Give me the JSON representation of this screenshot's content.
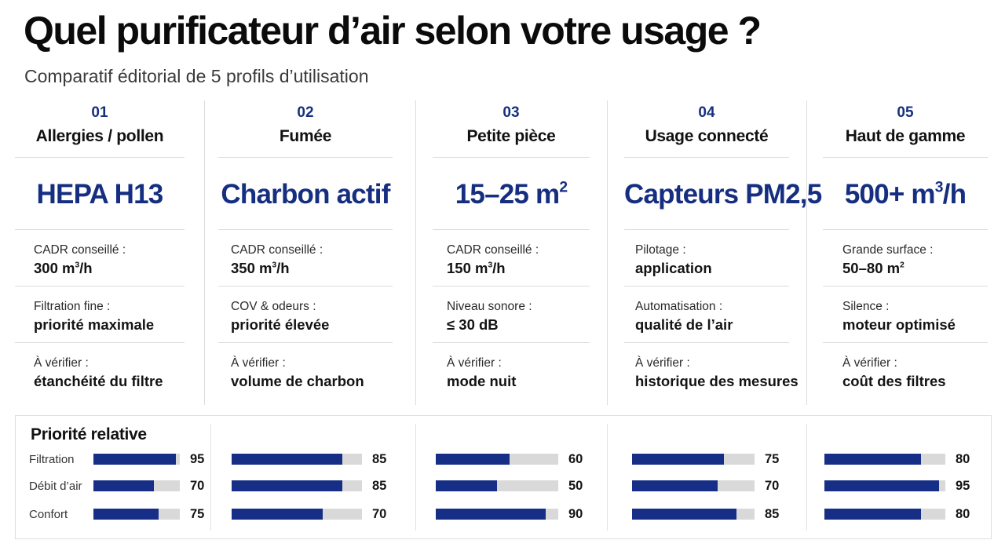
{
  "header": {
    "title": "Quel purificateur d’air selon votre usage ?",
    "subtitle": "Comparatif éditorial de 5 profils d’utilisation"
  },
  "profiles": [
    {
      "number": "01",
      "name": "Allergies / pollen",
      "highlight": "HEPA H13",
      "rows": [
        {
          "label": "CADR conseillé :",
          "value": "300 m³/h"
        },
        {
          "label": "Filtration fine :",
          "value": "priorité maximale"
        },
        {
          "label": "À vérifier :",
          "value": "étanchéité du filtre"
        }
      ]
    },
    {
      "number": "02",
      "name": "Fumée",
      "highlight": "Charbon actif",
      "rows": [
        {
          "label": "CADR conseillé :",
          "value": "350 m³/h"
        },
        {
          "label": "COV & odeurs :",
          "value": "priorité élevée"
        },
        {
          "label": "À vérifier :",
          "value": "volume de charbon"
        }
      ]
    },
    {
      "number": "03",
      "name": "Petite pièce",
      "highlight": "15–25 m²",
      "rows": [
        {
          "label": "CADR conseillé :",
          "value": "150 m³/h"
        },
        {
          "label": "Niveau sonore :",
          "value": "≤ 30 dB"
        },
        {
          "label": "À vérifier :",
          "value": "mode nuit"
        }
      ]
    },
    {
      "number": "04",
      "name": "Usage connecté",
      "highlight": "Capteurs PM2,5",
      "rows": [
        {
          "label": "Pilotage :",
          "value": "application"
        },
        {
          "label": "Automatisation :",
          "value": "qualité de l’air"
        },
        {
          "label": "À vérifier :",
          "value": "historique des mesures"
        }
      ]
    },
    {
      "number": "05",
      "name": "Haut de gamme",
      "highlight": "500+ m³/h",
      "rows": [
        {
          "label": "Grande surface :",
          "value": "50–80 m²"
        },
        {
          "label": "Silence :",
          "value": "moteur optimisé"
        },
        {
          "label": "À vérifier :",
          "value": "coût des filtres"
        }
      ]
    }
  ],
  "priority": {
    "title": "Priorité relative",
    "max": 100,
    "criteria": [
      "Filtration",
      "Débit d’air",
      "Confort"
    ],
    "scores": [
      [
        95,
        70,
        75
      ],
      [
        85,
        85,
        70
      ],
      [
        60,
        50,
        90
      ],
      [
        75,
        70,
        85
      ],
      [
        80,
        95,
        80
      ]
    ],
    "colors": {
      "fill": "#162e85",
      "track": "#d9d9d9"
    }
  }
}
